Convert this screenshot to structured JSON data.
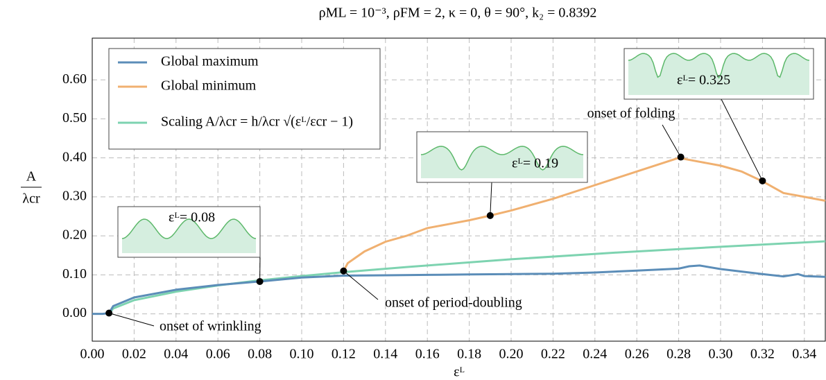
{
  "chart_data": {
    "type": "line",
    "title": "ρML = 10⁻³, ρFM = 2, κ = 0, θ = 90°, k₂ = 0.8392",
    "xlabel": "εᴸ",
    "ylabel": {
      "numerator": "A",
      "denominator": "λcr"
    },
    "xlim": [
      0,
      0.35
    ],
    "ylim": [
      -0.07,
      0.707
    ],
    "xticks": [
      {
        "value": 0,
        "label": "0.00"
      },
      {
        "value": 0.02,
        "label": "0.02"
      },
      {
        "value": 0.04,
        "label": "0.04"
      },
      {
        "value": 0.06,
        "label": "0.06"
      },
      {
        "value": 0.08,
        "label": "0.08"
      },
      {
        "value": 0.1,
        "label": "0.10"
      },
      {
        "value": 0.12,
        "label": "0.12"
      },
      {
        "value": 0.14,
        "label": "0.14"
      },
      {
        "value": 0.16,
        "label": "0.16"
      },
      {
        "value": 0.18,
        "label": "0.18"
      },
      {
        "value": 0.2,
        "label": "0.20"
      },
      {
        "value": 0.22,
        "label": "0.22"
      },
      {
        "value": 0.24,
        "label": "0.24"
      },
      {
        "value": 0.26,
        "label": "0.26"
      },
      {
        "value": 0.28,
        "label": "0.28"
      },
      {
        "value": 0.3,
        "label": "0.30"
      },
      {
        "value": 0.32,
        "label": "0.32"
      },
      {
        "value": 0.34,
        "label": "0.34"
      }
    ],
    "yticks": [
      {
        "value": 0,
        "label": "0.00"
      },
      {
        "value": 0.1,
        "label": "0.10"
      },
      {
        "value": 0.2,
        "label": "0.20"
      },
      {
        "value": 0.3,
        "label": "0.30"
      },
      {
        "value": 0.4,
        "label": "0.40"
      },
      {
        "value": 0.5,
        "label": "0.50"
      },
      {
        "value": 0.6,
        "label": "0.60"
      }
    ],
    "grid": true,
    "legend": "upper left",
    "series": [
      {
        "name": "Global maximum",
        "color": "#5b8db8",
        "x": [
          0,
          0.005,
          0.008,
          0.01,
          0.02,
          0.04,
          0.06,
          0.08,
          0.1,
          0.12,
          0.14,
          0.16,
          0.18,
          0.2,
          0.22,
          0.24,
          0.26,
          0.28,
          0.285,
          0.29,
          0.3,
          0.32,
          0.33,
          0.337,
          0.34,
          0.35
        ],
        "values": [
          0,
          0,
          0.002,
          0.02,
          0.042,
          0.062,
          0.074,
          0.083,
          0.093,
          0.098,
          0.099,
          0.1,
          0.101,
          0.102,
          0.103,
          0.106,
          0.111,
          0.116,
          0.122,
          0.124,
          0.115,
          0.102,
          0.096,
          0.102,
          0.097,
          0.095
        ]
      },
      {
        "name": "Global minimum",
        "color": "#f0b070",
        "x": [
          0.12,
          0.122,
          0.13,
          0.14,
          0.15,
          0.16,
          0.17,
          0.18,
          0.19,
          0.2,
          0.22,
          0.24,
          0.26,
          0.28,
          0.29,
          0.3,
          0.31,
          0.32,
          0.33,
          0.34,
          0.35
        ],
        "values": [
          0.11,
          0.13,
          0.16,
          0.185,
          0.2,
          0.22,
          0.23,
          0.24,
          0.252,
          0.265,
          0.295,
          0.33,
          0.365,
          0.4,
          0.39,
          0.38,
          0.365,
          0.34,
          0.31,
          0.3,
          0.29
        ]
      },
      {
        "name": "Scaling A/λcr = h/λcr √(εᴸ/εcr − 1)",
        "color": "#7dd3b0",
        "x": [
          0.008,
          0.01,
          0.02,
          0.04,
          0.06,
          0.08,
          0.1,
          0.12,
          0.15,
          0.2,
          0.25,
          0.3,
          0.35
        ],
        "values": [
          0,
          0.014,
          0.035,
          0.057,
          0.073,
          0.086,
          0.097,
          0.107,
          0.12,
          0.14,
          0.157,
          0.172,
          0.186
        ]
      }
    ],
    "markers": {
      "x": [
        0.008,
        0.08,
        0.12,
        0.19,
        0.281,
        0.32
      ],
      "y": [
        0.002,
        0.083,
        0.11,
        0.252,
        0.402,
        0.341
      ]
    },
    "annotations": [
      "onset of wrinkling",
      "onset of period-doubling",
      "onset of folding"
    ],
    "insets": [
      "εᴸ= 0.08",
      "εᴸ= 0.19",
      "εᴸ= 0.325"
    ]
  }
}
